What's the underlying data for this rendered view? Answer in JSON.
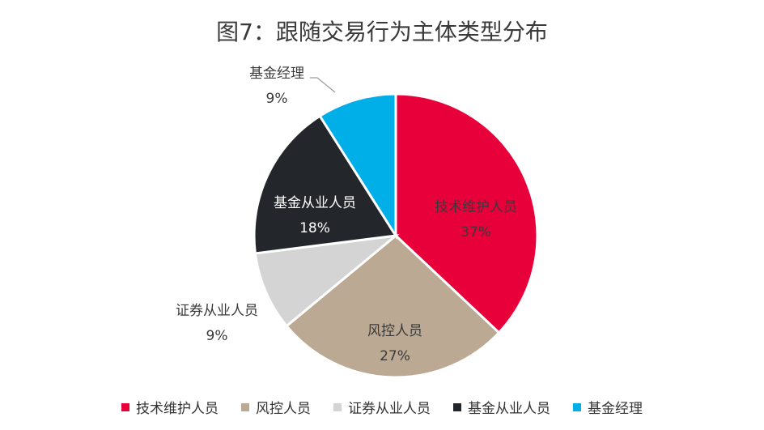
{
  "title": "图7：跟随交易行为主体类型分布",
  "chart_data": {
    "type": "pie",
    "title": "图7：跟随交易行为主体类型分布",
    "start_angle_deg": 0,
    "direction": "clockwise",
    "slices": [
      {
        "name": "技术维护人员",
        "value": 37,
        "label": "37%",
        "color": "#e8003a",
        "label_color": "#3a3a3a"
      },
      {
        "name": "风控人员",
        "value": 27,
        "label": "27%",
        "color": "#bba993",
        "label_color": "#3a3a3a"
      },
      {
        "name": "证券从业人员",
        "value": 9,
        "label": "9%",
        "color": "#d4d4d4",
        "label_color": "#3a3a3a",
        "outside": true
      },
      {
        "name": "基金从业人员",
        "value": 18,
        "label": "18%",
        "color": "#23272b",
        "label_color": "#ffffff"
      },
      {
        "name": "基金经理",
        "value": 9,
        "label": "9%",
        "color": "#00aee8",
        "label_color": "#3a3a3a",
        "outside": true,
        "leader_line": true
      }
    ],
    "legend": {
      "placement": "bottom",
      "entries": [
        "技术维护人员",
        "风控人员",
        "证券从业人员",
        "基金从业人员",
        "基金经理"
      ]
    }
  }
}
